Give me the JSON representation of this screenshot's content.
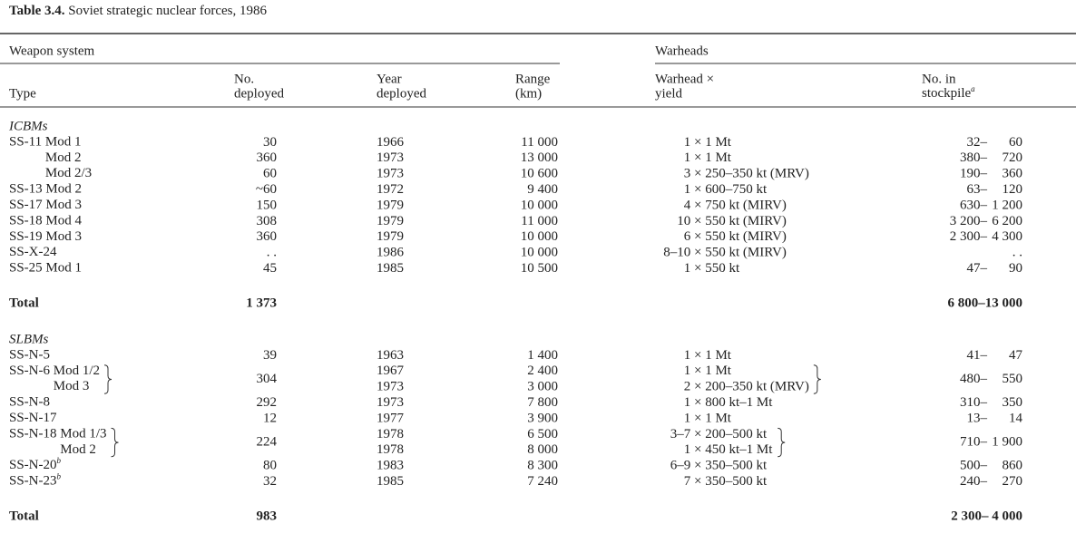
{
  "title": {
    "label": "Table 3.4.",
    "text": "Soviet strategic nuclear forces, 1986"
  },
  "header": {
    "weapon_system": "Weapon system",
    "warheads": "Warheads",
    "columns": {
      "type": "Type",
      "deployed": [
        "No.",
        "deployed"
      ],
      "year": [
        "Year",
        "deployed"
      ],
      "range": [
        "Range",
        "(km)"
      ],
      "warhead": [
        "Warhead ×",
        "yield"
      ],
      "stockpile": [
        "No. in",
        "stockpile"
      ],
      "stockpile_note": "a"
    }
  },
  "sections": [
    {
      "name": "ICBMs",
      "rows": [
        {
          "type": "SS-11 Mod 1",
          "deployed": "30",
          "year": "1966",
          "range": "11 000",
          "warhead": "1 × 1 Mt",
          "stockpile": {
            "low": "32–",
            "high": "60"
          }
        },
        {
          "type": "Mod 2",
          "deployed": "360",
          "year": "1973",
          "range": "13 000",
          "warhead": "1 × 1 Mt",
          "stockpile": {
            "low": "380–",
            "high": "720"
          }
        },
        {
          "type": "Mod 2/3",
          "deployed": "60",
          "year": "1973",
          "range": "10 600",
          "warhead": "3 × 250–350 kt (MRV)",
          "stockpile": {
            "low": "190–",
            "high": "360"
          }
        },
        {
          "type": "SS-13 Mod 2",
          "deployed": "~60",
          "year": "1972",
          "range": "9 400",
          "warhead": "1 × 600–750 kt",
          "stockpile": {
            "low": "63–",
            "high": "120"
          }
        },
        {
          "type": "SS-17 Mod 3",
          "deployed": "150",
          "year": "1979",
          "range": "10 000",
          "warhead": "4 × 750 kt (MIRV)",
          "stockpile": {
            "low": "630–",
            "high": "1 200"
          }
        },
        {
          "type": "SS-18 Mod 4",
          "deployed": "308",
          "year": "1979",
          "range": "11 000",
          "warhead": "10 × 550 kt (MIRV)",
          "stockpile": {
            "low": "3 200–",
            "high": "6 200"
          }
        },
        {
          "type": "SS-19 Mod 3",
          "deployed": "360",
          "year": "1979",
          "range": "10 000",
          "warhead": "6 × 550 kt (MIRV)",
          "stockpile": {
            "low": "2 300–",
            "high": "4 300"
          }
        },
        {
          "type": "SS-X-24",
          "deployed": ". .",
          "year": "1986",
          "range": "10 000",
          "warhead": "8–10 × 550 kt (MIRV)",
          "stockpile": {
            "high": ". ."
          }
        },
        {
          "type": "SS-25 Mod 1",
          "deployed": "45",
          "year": "1985",
          "range": "10 500",
          "warhead": "1 × 550 kt",
          "stockpile": {
            "low": "47–",
            "high": "90"
          }
        }
      ],
      "total": {
        "label": "Total",
        "deployed": "1 373",
        "stockpile": "6 800–13 000"
      }
    },
    {
      "name": "SLBMs",
      "rows": [
        {
          "type": "SS-N-5",
          "deployed": "39",
          "year": "1963",
          "range": "1 400",
          "warhead": "1 × 1 Mt",
          "stockpile": {
            "low": "41–",
            "high": "47"
          }
        },
        {
          "lines": [
            {
              "type": "SS-N-6 Mod 1/2",
              "year": "1967",
              "range": "2 400",
              "warhead": "1 × 1 Mt"
            },
            {
              "type": "Mod 3",
              "year": "1973",
              "range": "3 000",
              "warhead": "2 × 200–350 kt (MRV)"
            }
          ],
          "deployed": "304",
          "stockpile": {
            "low": "480–",
            "high": "550"
          }
        },
        {
          "type": "SS-N-8",
          "deployed": "292",
          "year": "1973",
          "range": "7 800",
          "warhead": "1 × 800 kt–1 Mt",
          "stockpile": {
            "low": "310–",
            "high": "350"
          }
        },
        {
          "type": "SS-N-17",
          "deployed": "12",
          "year": "1977",
          "range": "3 900",
          "warhead": "1 × 1 Mt",
          "stockpile": {
            "low": "13–",
            "high": "14"
          }
        },
        {
          "lines": [
            {
              "type": "SS-N-18 Mod 1/3",
              "year": "1978",
              "range": "6 500",
              "warhead": "3–7 × 200–500 kt"
            },
            {
              "type": "Mod 2",
              "year": "1978",
              "range": "8 000",
              "warhead": "1 × 450 kt–1 Mt"
            }
          ],
          "deployed": "224",
          "stockpile": {
            "low": "710–",
            "high": "1 900"
          }
        },
        {
          "type": "SS-N-20",
          "note": "b",
          "deployed": "80",
          "year": "1983",
          "range": "8 300",
          "warhead": "6–9 × 350–500 kt",
          "stockpile": {
            "low": "500–",
            "high": "860"
          }
        },
        {
          "type": "SS-N-23",
          "note": "b",
          "deployed": "32",
          "year": "1985",
          "range": "7 240",
          "warhead": "7 × 350–500 kt",
          "stockpile": {
            "low": "240–",
            "high": "270"
          }
        }
      ],
      "total": {
        "label": "Total",
        "deployed": "983",
        "stockpile": "2 300– 4 000"
      }
    }
  ]
}
